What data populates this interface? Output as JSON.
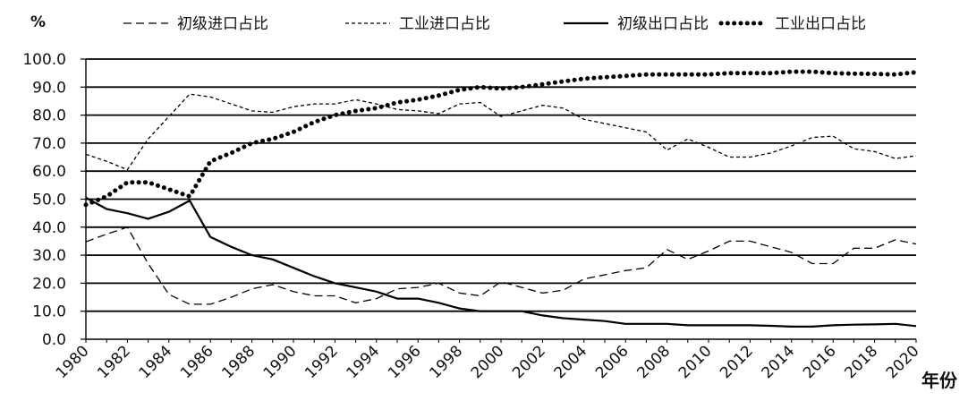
{
  "chart_data": {
    "type": "line",
    "ylabel": "%",
    "xlabel": "年份",
    "ylim": [
      0,
      100
    ],
    "yticks": [
      "0.0",
      "10.0",
      "20.0",
      "30.0",
      "40.0",
      "50.0",
      "60.0",
      "70.0",
      "80.0",
      "90.0",
      "100.0"
    ],
    "xticks": [
      "1980",
      "1982",
      "1984",
      "1986",
      "1988",
      "1990",
      "1992",
      "1994",
      "1996",
      "1998",
      "2000",
      "2002",
      "2004",
      "2006",
      "2008",
      "2010",
      "2012",
      "2014",
      "2016",
      "2018",
      "2020"
    ],
    "grid": "horizontal",
    "legend_position": "top",
    "x": [
      1980,
      1981,
      1982,
      1983,
      1984,
      1985,
      1986,
      1987,
      1988,
      1989,
      1990,
      1991,
      1992,
      1993,
      1994,
      1995,
      1996,
      1997,
      1998,
      1999,
      2000,
      2001,
      2002,
      2003,
      2004,
      2005,
      2006,
      2007,
      2008,
      2009,
      2010,
      2011,
      2012,
      2013,
      2014,
      2015,
      2016,
      2017,
      2018,
      2019,
      2020
    ],
    "series": [
      {
        "name": "初级进口占比",
        "style": "long-dash",
        "values": [
          34.8,
          37.5,
          40.0,
          27.0,
          16.0,
          12.5,
          12.5,
          15.0,
          18.0,
          19.5,
          17.0,
          15.5,
          15.5,
          13.0,
          14.5,
          18.0,
          18.5,
          20.0,
          16.5,
          15.5,
          20.5,
          18.5,
          16.5,
          17.5,
          21.5,
          23.0,
          24.5,
          25.5,
          32.0,
          28.5,
          31.5,
          35.0,
          35.0,
          33.0,
          31.0,
          27.0,
          27.0,
          32.5,
          32.5,
          35.5,
          34.0
        ]
      },
      {
        "name": "工业进口占比",
        "style": "short-dash",
        "values": [
          66.0,
          63.5,
          60.5,
          71.5,
          79.5,
          87.5,
          86.5,
          84.0,
          81.5,
          81.0,
          83.0,
          84.0,
          84.0,
          85.5,
          84.0,
          82.0,
          81.5,
          80.5,
          84.0,
          84.5,
          79.5,
          81.5,
          83.5,
          82.5,
          78.5,
          77.0,
          75.5,
          74.0,
          67.5,
          71.5,
          68.5,
          65.0,
          65.0,
          66.5,
          69.0,
          72.0,
          72.5,
          68.0,
          67.0,
          64.5,
          65.5
        ]
      },
      {
        "name": "初级出口占比",
        "style": "solid",
        "values": [
          50.5,
          46.5,
          45.0,
          43.0,
          45.5,
          49.5,
          36.5,
          33.0,
          30.0,
          28.5,
          25.5,
          22.5,
          20.0,
          18.5,
          17.0,
          14.5,
          14.5,
          13.0,
          11.0,
          10.0,
          10.0,
          10.0,
          8.5,
          7.5,
          7.0,
          6.5,
          5.5,
          5.5,
          5.5,
          5.0,
          5.0,
          5.0,
          5.0,
          4.8,
          4.5,
          4.5,
          5.0,
          5.2,
          5.3,
          5.5,
          4.7
        ]
      },
      {
        "name": "工业出口占比",
        "style": "dotted",
        "values": [
          48.0,
          51.0,
          56.0,
          56.0,
          53.5,
          51.0,
          63.5,
          66.5,
          70.0,
          71.5,
          74.0,
          77.5,
          80.0,
          81.5,
          82.5,
          84.5,
          85.5,
          87.0,
          89.0,
          90.0,
          89.5,
          90.0,
          91.0,
          92.0,
          93.0,
          93.5,
          94.0,
          94.5,
          94.5,
          94.5,
          94.5,
          95.0,
          95.0,
          95.0,
          95.5,
          95.5,
          95.0,
          94.8,
          94.7,
          94.5,
          95.3
        ]
      }
    ]
  }
}
